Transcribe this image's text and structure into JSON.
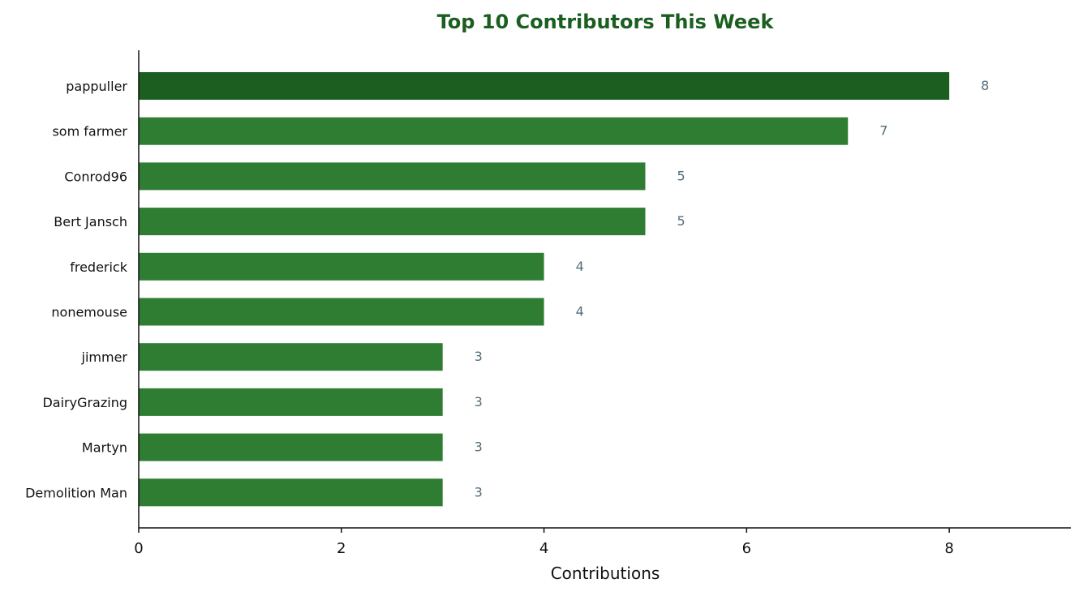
{
  "chart_data": {
    "type": "bar",
    "orientation": "horizontal",
    "title": "Top 10 Contributors This Week",
    "xlabel": "Contributions",
    "ylabel": "",
    "categories": [
      "pappuller",
      "som farmer",
      "Conrod96",
      "Bert Jansch",
      "frederick",
      "nonemouse",
      "jimmer",
      "DairyGrazing",
      "Martyn",
      "Demolition Man"
    ],
    "values": [
      8,
      7,
      5,
      5,
      4,
      4,
      3,
      3,
      3,
      3
    ],
    "value_labels": [
      "8",
      "7",
      "5",
      "5",
      "4",
      "4",
      "3",
      "3",
      "3",
      "3"
    ],
    "xlim": [
      0,
      9.2
    ],
    "xticks": [
      0,
      2,
      4,
      6,
      8
    ],
    "xtick_labels": [
      "0",
      "2",
      "4",
      "6",
      "8"
    ],
    "grid": false,
    "legend": "none",
    "colors": {
      "title": "#1b5e20",
      "top_bar": "#1b5e20",
      "bar": "#2e7d32",
      "value_label": "#546e7a",
      "axis": "#111111"
    }
  }
}
